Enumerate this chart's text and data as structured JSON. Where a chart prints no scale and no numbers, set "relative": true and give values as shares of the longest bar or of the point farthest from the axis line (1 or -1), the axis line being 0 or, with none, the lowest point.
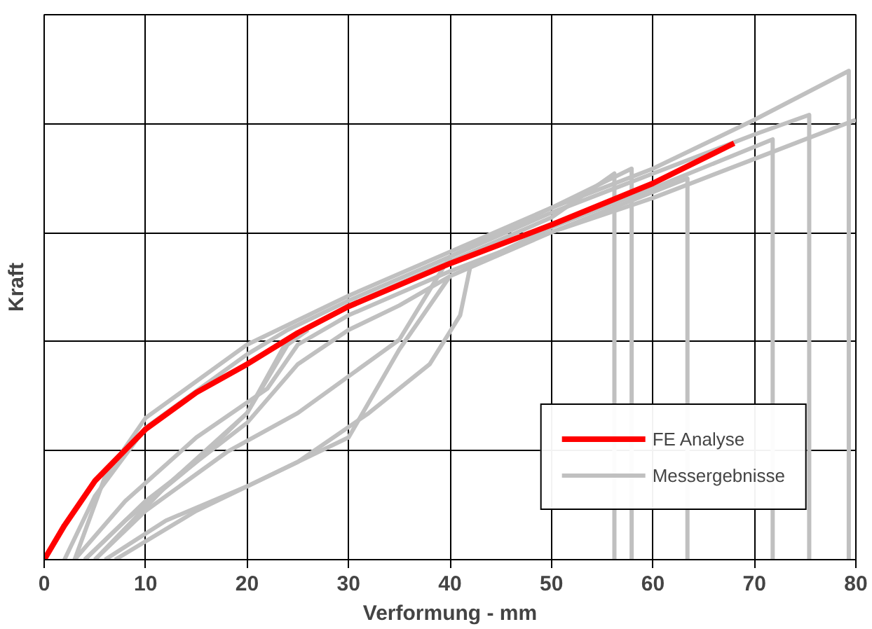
{
  "chart_data": {
    "type": "line",
    "xlabel": "Verformung - mm",
    "ylabel": "Kraft",
    "relative": true,
    "xlim": [
      0,
      80
    ],
    "xticks": [
      0,
      10,
      20,
      30,
      40,
      50,
      60,
      70,
      80
    ],
    "grid": true,
    "legend": "bottom right",
    "line_style": "solid",
    "marker": "none",
    "series": [
      {
        "name": "FE Analyse",
        "color": "#ff0000",
        "x": [
          0,
          2,
          5,
          10,
          15,
          20,
          25,
          30,
          40,
          50,
          60,
          68
        ],
        "values": [
          0,
          0.07,
          0.161,
          0.267,
          0.342,
          0.4,
          0.464,
          0.518,
          0.606,
          0.685,
          0.77,
          0.852
        ]
      },
      {
        "name": "Messergebnisse",
        "color": "#c0c0c0",
        "x": [
          4,
          8,
          15,
          20,
          24,
          30,
          40,
          50,
          56.2,
          56.2
        ],
        "values": [
          0,
          0.08,
          0.2,
          0.3,
          0.45,
          0.52,
          0.61,
          0.7,
          0.79,
          0
        ]
      },
      {
        "color": "#c0c0c0",
        "x": [
          5,
          10,
          18,
          25,
          35,
          40,
          50,
          57.9,
          57.9
        ],
        "values": [
          0,
          0.1,
          0.22,
          0.3,
          0.45,
          0.62,
          0.72,
          0.8,
          0
        ]
      },
      {
        "color": "#c0c0c0",
        "x": [
          6,
          12,
          20,
          30,
          35,
          40,
          50,
          63.4,
          63.4
        ],
        "values": [
          0,
          0.08,
          0.15,
          0.25,
          0.43,
          0.58,
          0.67,
          0.78,
          0
        ]
      },
      {
        "color": "#c0c0c0",
        "x": [
          7,
          15,
          25,
          32,
          38,
          41,
          42,
          50,
          60,
          71.8,
          71.8
        ],
        "values": [
          0,
          0.1,
          0.2,
          0.3,
          0.4,
          0.5,
          0.6,
          0.68,
          0.76,
          0.86,
          0
        ]
      },
      {
        "color": "#c0c0c0",
        "x": [
          2,
          5,
          10,
          20,
          24,
          30,
          40,
          50,
          60,
          70,
          75.4,
          75.4
        ],
        "values": [
          0,
          0.13,
          0.27,
          0.42,
          0.47,
          0.53,
          0.62,
          0.71,
          0.79,
          0.87,
          0.91,
          0
        ]
      },
      {
        "color": "#c0c0c0",
        "x": [
          3,
          8,
          15,
          22,
          25,
          30,
          40,
          50,
          60,
          70,
          80
        ],
        "values": [
          0,
          0.12,
          0.25,
          0.35,
          0.44,
          0.5,
          0.59,
          0.67,
          0.74,
          0.82,
          0.9
        ]
      },
      {
        "color": "#c0c0c0",
        "x": [
          3,
          6,
          10,
          20,
          30,
          40,
          50,
          60,
          70,
          79.3,
          79.3
        ],
        "values": [
          0,
          0.17,
          0.29,
          0.44,
          0.54,
          0.63,
          0.72,
          0.8,
          0.9,
          1.0,
          0
        ]
      },
      {
        "color": "#c0c0c0",
        "x": [
          4,
          10,
          20,
          25,
          30,
          35,
          40
        ],
        "values": [
          0,
          0.12,
          0.28,
          0.4,
          0.47,
          0.52,
          0.58
        ]
      },
      {
        "color": "#c0c0c0",
        "x": [
          5,
          12,
          20,
          24,
          26
        ],
        "values": [
          0,
          0.15,
          0.3,
          0.44,
          0.47
        ]
      }
    ]
  }
}
